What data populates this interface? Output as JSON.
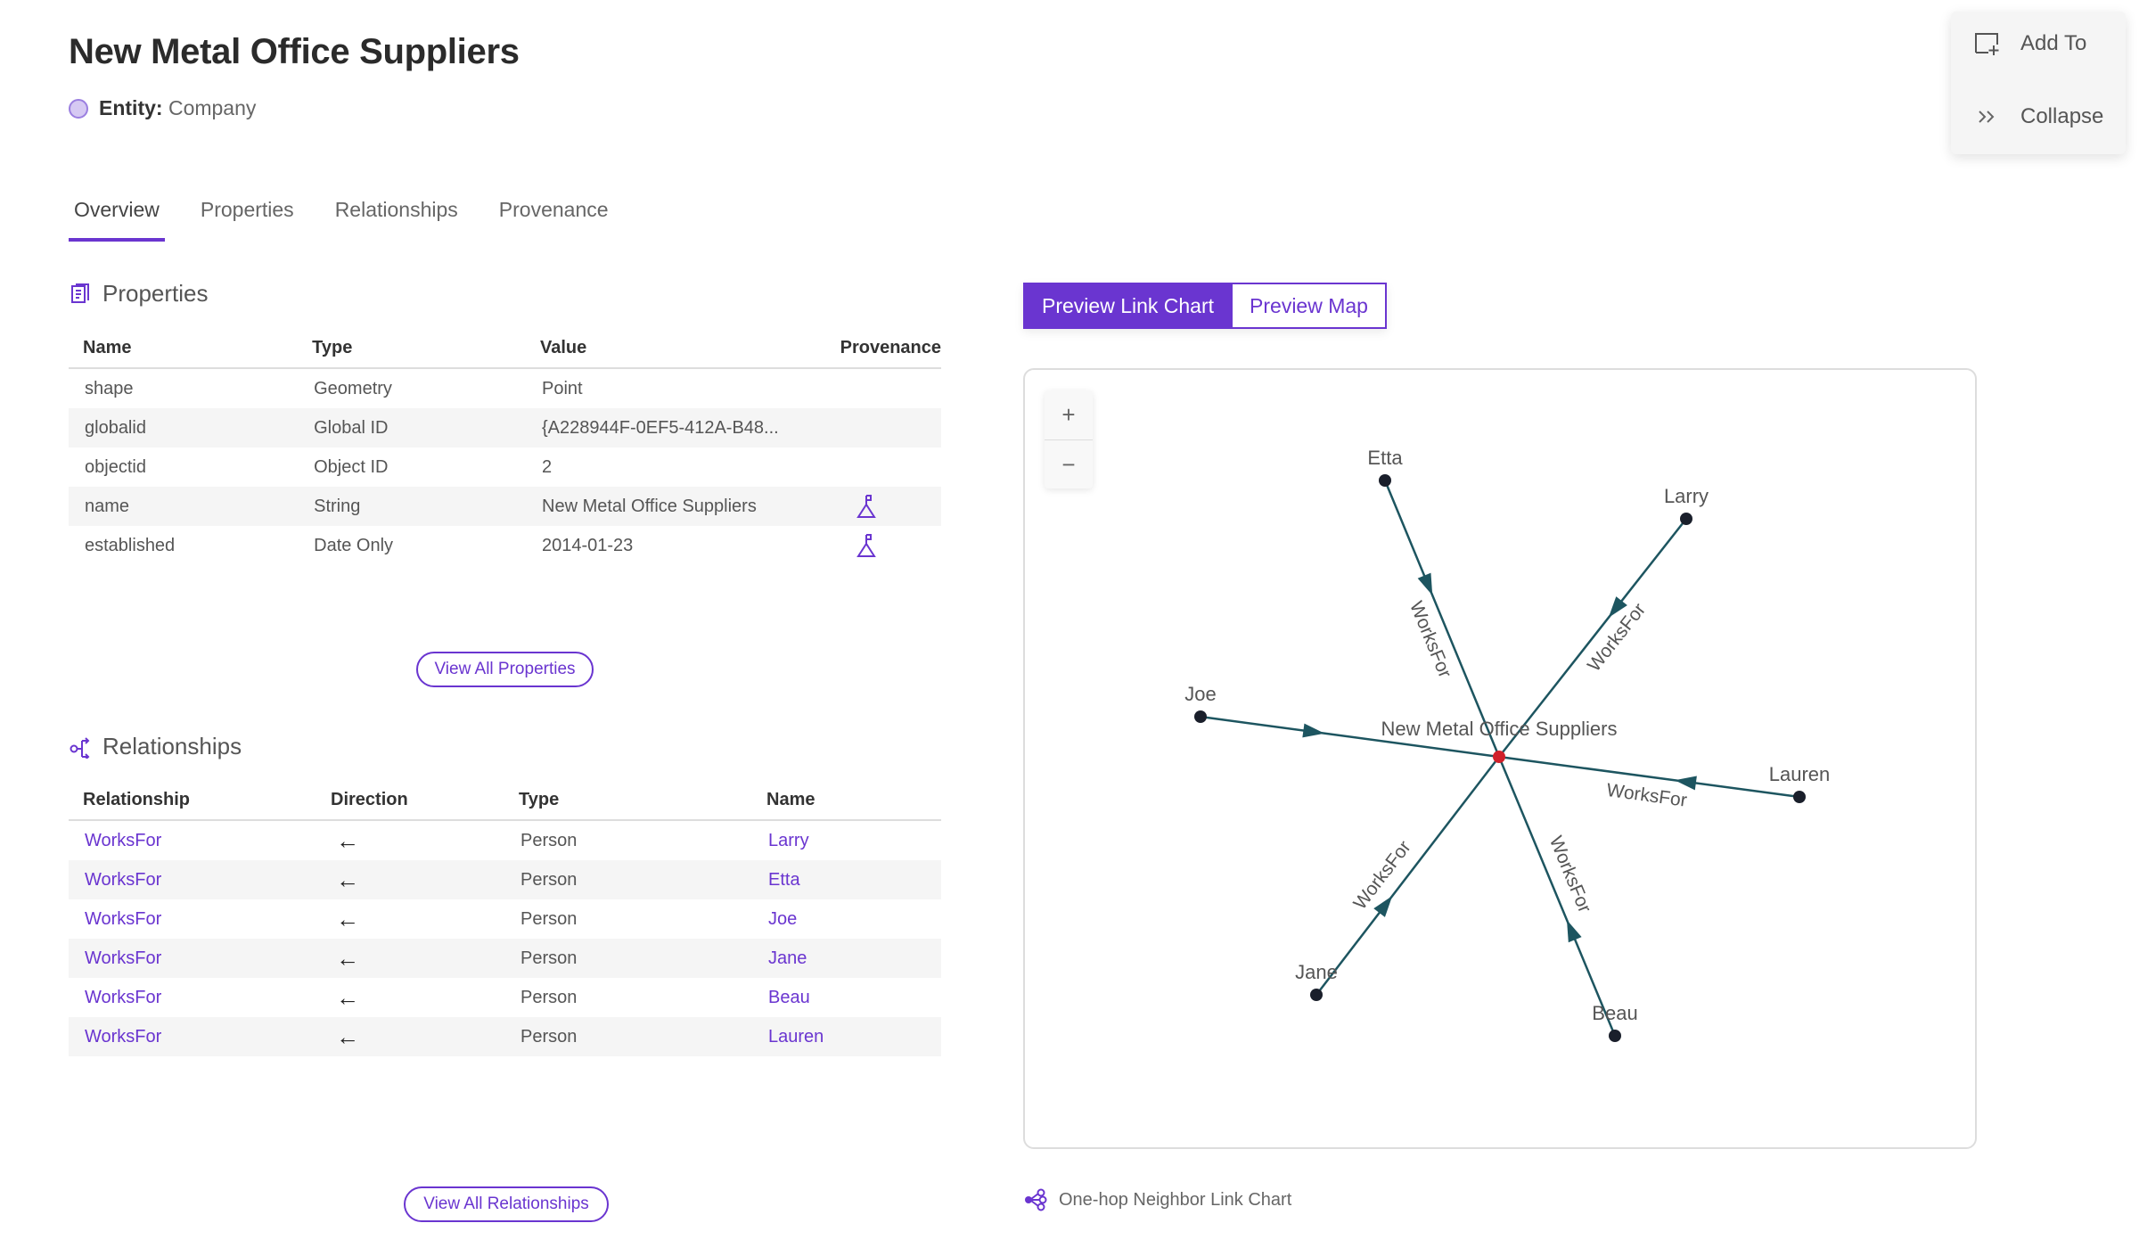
{
  "header": {
    "title": "New Metal Office Suppliers",
    "entity_label": "Entity:",
    "entity_value": "Company"
  },
  "tabs": [
    {
      "label": "Overview",
      "active": true
    },
    {
      "label": "Properties"
    },
    {
      "label": "Relationships"
    },
    {
      "label": "Provenance"
    }
  ],
  "properties": {
    "title": "Properties",
    "columns": [
      "Name",
      "Type",
      "Value",
      "Provenance"
    ],
    "rows": [
      {
        "name": "shape",
        "type": "Geometry",
        "value": "Point",
        "provenance": false
      },
      {
        "name": "globalid",
        "type": "Global ID",
        "value": "{A228944F-0EF5-412A-B48...",
        "provenance": false
      },
      {
        "name": "objectid",
        "type": "Object ID",
        "value": "2",
        "provenance": false
      },
      {
        "name": "name",
        "type": "String",
        "value": "New Metal Office Suppliers",
        "provenance": true
      },
      {
        "name": "established",
        "type": "Date Only",
        "value": "2014-01-23",
        "provenance": true
      }
    ],
    "view_all": "View All Properties"
  },
  "relationships": {
    "title": "Relationships",
    "columns": [
      "Relationship",
      "Direction",
      "Type",
      "Name"
    ],
    "rows": [
      {
        "relationship": "WorksFor",
        "direction": "←",
        "type": "Person",
        "name": "Larry"
      },
      {
        "relationship": "WorksFor",
        "direction": "←",
        "type": "Person",
        "name": "Etta"
      },
      {
        "relationship": "WorksFor",
        "direction": "←",
        "type": "Person",
        "name": "Joe"
      },
      {
        "relationship": "WorksFor",
        "direction": "←",
        "type": "Person",
        "name": "Jane"
      },
      {
        "relationship": "WorksFor",
        "direction": "←",
        "type": "Person",
        "name": "Beau"
      },
      {
        "relationship": "WorksFor",
        "direction": "←",
        "type": "Person",
        "name": "Lauren"
      }
    ],
    "view_all": "View All Relationships"
  },
  "preview": {
    "link_chart": "Preview Link Chart",
    "map": "Preview Map",
    "active": "link_chart",
    "zoom_in": "+",
    "zoom_out": "−",
    "caption": "One-hop Neighbor Link Chart"
  },
  "graph": {
    "center": "New Metal Office Suppliers",
    "edge_label": "WorksFor",
    "nodes": [
      "Etta",
      "Larry",
      "Joe",
      "Lauren",
      "Jane",
      "Beau"
    ],
    "colors": {
      "edge": "#1d5560",
      "node": "#1a1f2b",
      "center": "#d0202a"
    }
  },
  "side_panel": {
    "add_to": "Add To",
    "collapse": "Collapse"
  },
  "colors": {
    "accent": "#6a35d0"
  }
}
